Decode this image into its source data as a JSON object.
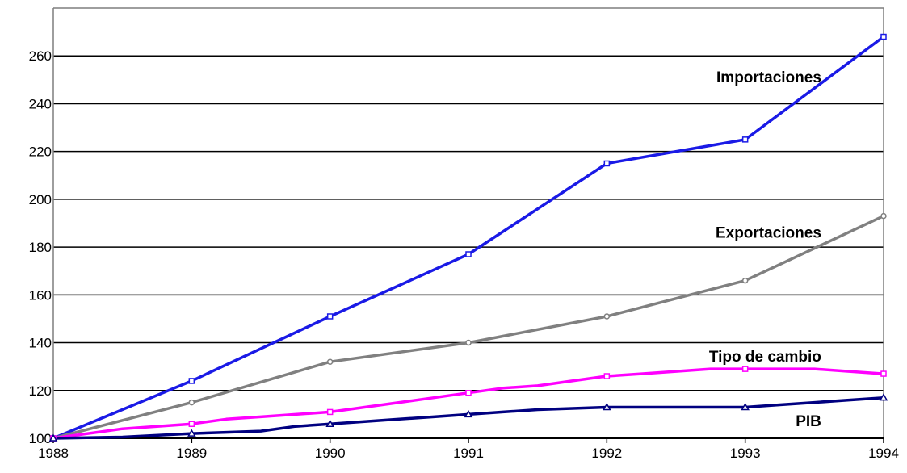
{
  "chart_data": {
    "type": "line",
    "title": "",
    "xlabel": "",
    "ylabel": "",
    "x_ticks": [
      "1988",
      "1989",
      "1990",
      "1991",
      "1992",
      "1993",
      "1994"
    ],
    "y_ticks": [
      100,
      120,
      140,
      160,
      180,
      200,
      220,
      240,
      260
    ],
    "xlim": [
      1988,
      1994
    ],
    "ylim": [
      100,
      280
    ],
    "grid": true,
    "legend": "none",
    "series": [
      {
        "name": "Importaciones",
        "color": "#1a1ae6",
        "marker": "square",
        "x": [
          1988,
          1989,
          1990,
          1991,
          1992,
          1993,
          1994
        ],
        "y": [
          100,
          124,
          151,
          177,
          215,
          225,
          268
        ],
        "marker_x": [
          1988,
          1989,
          1990,
          1991,
          1992,
          1993,
          1994
        ]
      },
      {
        "name": "Exportaciones",
        "color": "#808080",
        "marker": "circle",
        "x": [
          1988,
          1989,
          1990,
          1991,
          1992,
          1993,
          1994
        ],
        "y": [
          100,
          115,
          132,
          140,
          151,
          166,
          193
        ],
        "marker_x": [
          1988,
          1989,
          1990,
          1991,
          1992,
          1993,
          1994
        ]
      },
      {
        "name": "Tipo de cambio",
        "color": "#ff00ff",
        "marker": "square",
        "x": [
          1988,
          1988.5,
          1989,
          1989.25,
          1989.5,
          1989.75,
          1990,
          1990.25,
          1990.5,
          1990.75,
          1991,
          1991.25,
          1991.5,
          1991.75,
          1992,
          1992.25,
          1992.5,
          1992.75,
          1993,
          1993.25,
          1993.5,
          1993.75,
          1994
        ],
        "y": [
          100,
          104,
          106,
          108,
          109,
          110,
          111,
          113,
          115,
          117,
          119,
          121,
          122,
          124,
          126,
          127,
          128,
          129,
          129,
          129,
          129,
          128,
          127
        ],
        "marker_x": [
          1988,
          1989,
          1990,
          1991,
          1992,
          1993,
          1994
        ]
      },
      {
        "name": "PIB",
        "color": "#000080",
        "marker": "triangle",
        "x": [
          1988,
          1988.5,
          1989,
          1989.25,
          1989.5,
          1989.75,
          1990,
          1990.25,
          1990.5,
          1990.75,
          1991,
          1991.25,
          1991.5,
          1991.75,
          1992,
          1992.25,
          1992.5,
          1992.75,
          1993,
          1993.25,
          1993.5,
          1993.75,
          1994
        ],
        "y": [
          100,
          100.5,
          102,
          102.5,
          103,
          105,
          106,
          107,
          108,
          109,
          110,
          111,
          112,
          112.5,
          113,
          113,
          113,
          113,
          113,
          114,
          115,
          116,
          117
        ],
        "marker_x": [
          1988,
          1989,
          1990,
          1991,
          1992,
          1993,
          1994
        ]
      }
    ],
    "annotations": [
      {
        "text": "Importaciones",
        "series": "Importaciones",
        "x": 1993.55,
        "y": 249
      },
      {
        "text": "Exportaciones",
        "series": "Exportaciones",
        "x": 1993.55,
        "y": 184
      },
      {
        "text": "Tipo de cambio",
        "series": "Tipo de cambio",
        "x": 1993.55,
        "y": 132
      },
      {
        "text": "PIB",
        "series": "PIB",
        "x": 1993.55,
        "y": 105
      }
    ]
  }
}
